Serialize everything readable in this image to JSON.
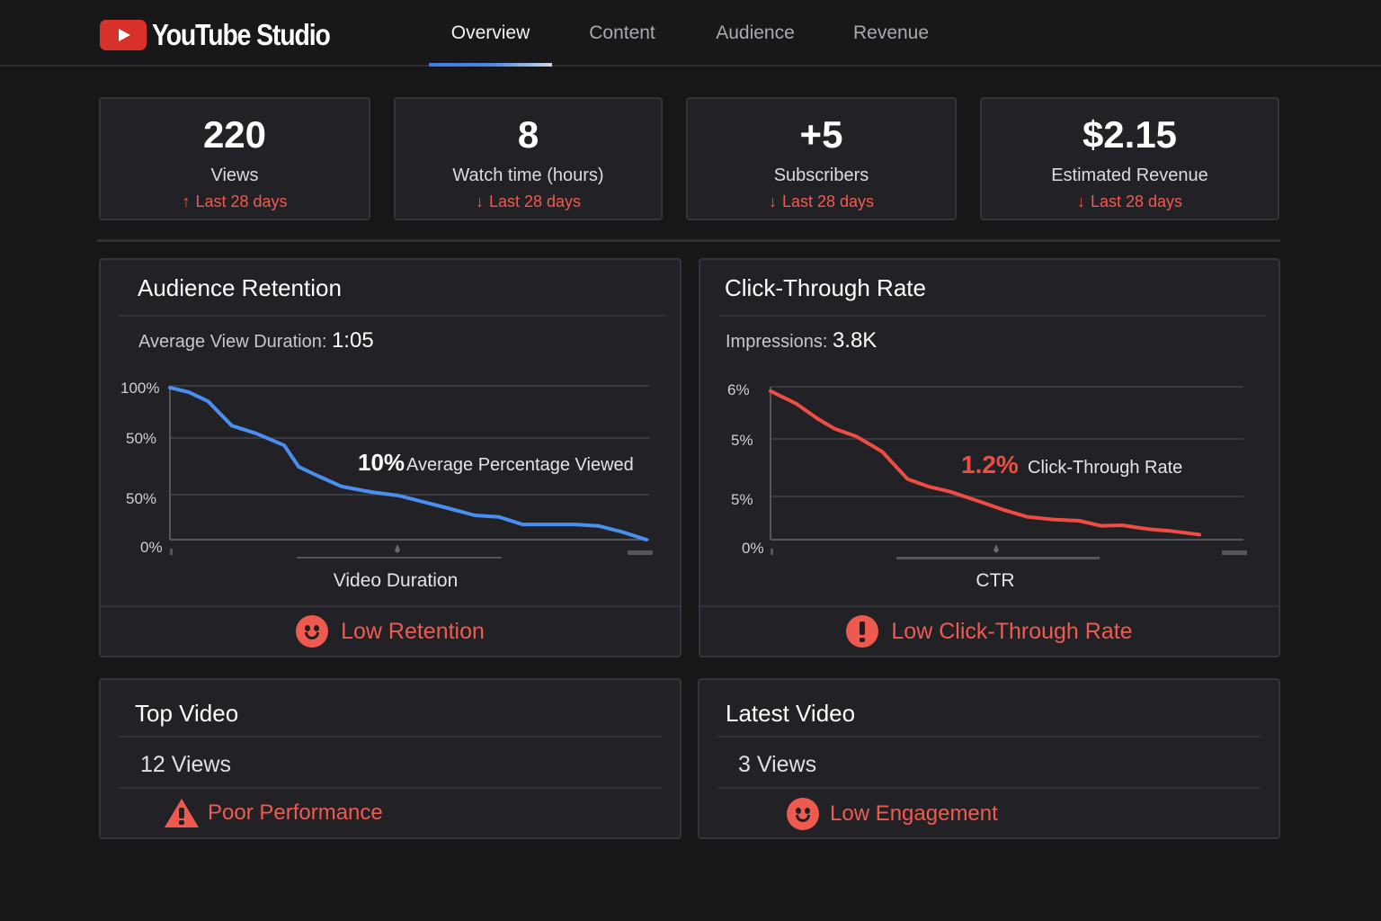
{
  "app": {
    "title": "YouTube Studio",
    "brand_color": "#d8312a",
    "accent_color": "#4b86e4",
    "alert_color": "#ef5a50"
  },
  "nav": {
    "tabs": [
      {
        "label": "Overview",
        "active": true
      },
      {
        "label": "Content",
        "active": false
      },
      {
        "label": "Audience",
        "active": false
      },
      {
        "label": "Revenue",
        "active": false
      }
    ]
  },
  "stats": [
    {
      "value": "220",
      "label": "Views",
      "trend": "Last 28 days",
      "trend_dir": "up",
      "arrow": "↑"
    },
    {
      "value": "8",
      "label": "Watch time (hours)",
      "trend": "Last 28 days",
      "trend_dir": "down",
      "arrow": "↓"
    },
    {
      "value": "+5",
      "label": "Subscribers",
      "trend": "Last 28 days",
      "trend_dir": "down",
      "arrow": "↓"
    },
    {
      "value": "$2.15",
      "label": "Estimated Revenue",
      "trend": "Last 28 days",
      "trend_dir": "down",
      "arrow": "↓"
    }
  ],
  "retention": {
    "title": "Audience Retention",
    "sub_label": "Average View Duration:",
    "sub_value": "1:05",
    "annotation_value": "10%",
    "annotation_label": "Average Percentage Viewed",
    "xlabel": "Video Duration",
    "alert": "Low Retention",
    "alert_icon": "frown-face-icon"
  },
  "ctr": {
    "title": "Click-Through Rate",
    "sub_label": "Impressions:",
    "sub_value": "3.8K",
    "annotation_value": "1.2%",
    "annotation_label": "Click-Through Rate",
    "xlabel": "CTR",
    "alert": "Low Click-Through Rate",
    "alert_icon": "exclamation-circle-icon"
  },
  "top_video": {
    "title": "Top Video",
    "views": "12 Views",
    "alert": "Poor Performance",
    "alert_icon": "warning-triangle-icon"
  },
  "latest_video": {
    "title": "Latest Video",
    "views": "3 Views",
    "alert": "Low Engagement",
    "alert_icon": "face-icon"
  },
  "chart_data": [
    {
      "type": "line",
      "title": "Audience Retention",
      "xlabel": "Video Duration",
      "ylabel": "",
      "y_tick_labels": [
        "100%",
        "50%",
        "50%",
        "0%"
      ],
      "ylim": [
        0,
        100
      ],
      "xlim": [
        0,
        100
      ],
      "grid": true,
      "color": "#4a8ff0",
      "series": [
        {
          "name": "Retention",
          "x": [
            0,
            4,
            8,
            13,
            18,
            24,
            27,
            31,
            36,
            41,
            43,
            48,
            53,
            58,
            64,
            69,
            74,
            80,
            85,
            90,
            95,
            100
          ],
          "y": [
            100,
            97,
            91,
            75,
            70,
            62,
            48,
            42,
            35,
            32,
            31,
            29,
            25,
            21,
            16,
            15,
            10,
            10,
            10,
            9,
            5,
            0
          ]
        }
      ]
    },
    {
      "type": "line",
      "title": "Click-Through Rate",
      "xlabel": "CTR",
      "ylabel": "",
      "y_tick_labels": [
        "6%",
        "5%",
        "5%",
        "0%"
      ],
      "ylim": [
        0,
        6
      ],
      "xlim": [
        0,
        100
      ],
      "grid": true,
      "color": "#ef4c43",
      "series": [
        {
          "name": "CTR",
          "x": [
            0,
            6,
            11,
            15,
            20,
            26,
            32,
            37,
            42,
            49,
            54,
            60,
            66,
            72,
            77,
            82,
            88,
            93,
            100
          ],
          "y": [
            5.9,
            5.4,
            4.8,
            4.4,
            4.1,
            3.5,
            2.4,
            2.1,
            1.9,
            1.5,
            1.2,
            0.9,
            0.8,
            0.75,
            0.55,
            0.57,
            0.42,
            0.35,
            0.2
          ]
        }
      ]
    }
  ]
}
